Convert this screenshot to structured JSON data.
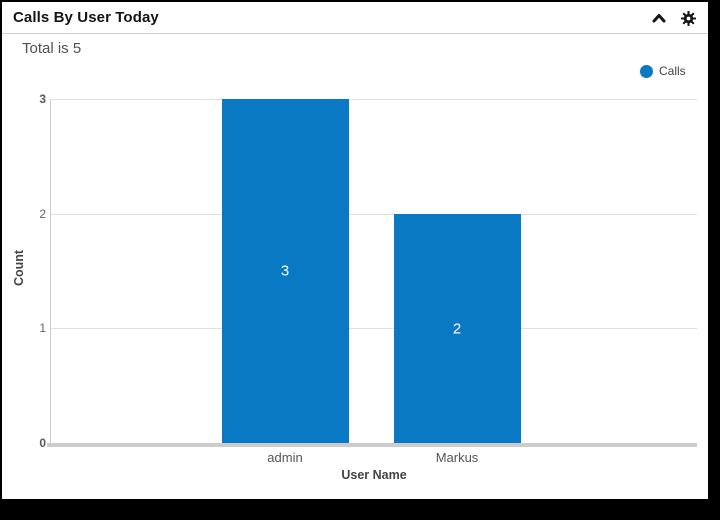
{
  "panel": {
    "title": "Calls By User Today",
    "summary": "Total is 5",
    "header_icons": [
      "chevron-up-icon",
      "gear-icon"
    ]
  },
  "legend": {
    "items": [
      {
        "label": "Calls",
        "color": "#0879c2"
      }
    ],
    "position": "top-right"
  },
  "chart_data": {
    "type": "bar",
    "title": "",
    "categories": [
      "admin",
      "Markus"
    ],
    "series": [
      {
        "name": "Calls",
        "values": [
          3,
          2
        ]
      }
    ],
    "value_labels": [
      "3",
      "2"
    ],
    "xlabel": "User Name",
    "ylabel": "Count",
    "ylim": [
      0,
      3
    ],
    "yticks": [
      0,
      1,
      2,
      3
    ],
    "grid": true,
    "bar_color": "#0879c2",
    "value_label_color": "#ffffff",
    "legend_position": "top-right"
  }
}
